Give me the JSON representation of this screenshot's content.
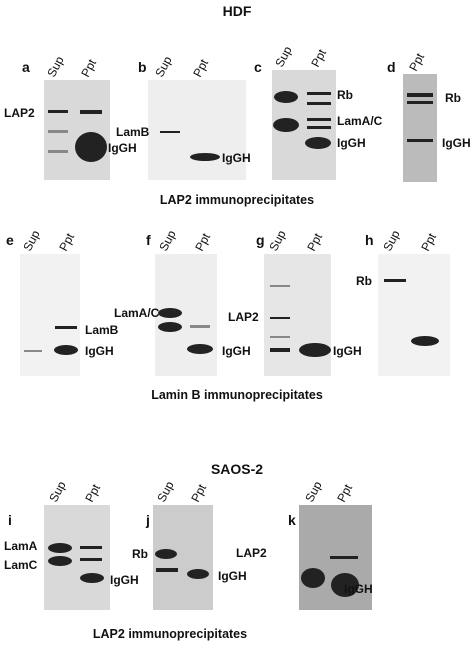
{
  "headers": [
    "HDF",
    "SAOS-2"
  ],
  "captions": [
    "LAP2 immunoprecipitates",
    "Lamin B immunoprecipitates",
    "LAP2 immunoprecipitates"
  ],
  "panels": [
    {
      "letter": "a",
      "lanes": [
        "Sup",
        "Ppt"
      ],
      "labels": [
        "LAP2",
        "IgGH"
      ]
    },
    {
      "letter": "b",
      "lanes": [
        "Sup",
        "Ppt"
      ],
      "labels": [
        "LamB",
        "IgGH"
      ]
    },
    {
      "letter": "c",
      "lanes": [
        "Sup",
        "Ppt"
      ],
      "labels": [
        "Rb",
        "LamA/C",
        "IgGH"
      ]
    },
    {
      "letter": "d",
      "lanes": [
        "Ppt"
      ],
      "labels": [
        "Rb",
        "IgGH"
      ]
    },
    {
      "letter": "e",
      "lanes": [
        "Sup",
        "Ppt"
      ],
      "labels": [
        "LamB",
        "IgGH"
      ]
    },
    {
      "letter": "f",
      "lanes": [
        "Sup",
        "Ppt"
      ],
      "labels": [
        "LamA/C",
        "IgGH"
      ]
    },
    {
      "letter": "g",
      "lanes": [
        "Sup",
        "Ppt"
      ],
      "labels": [
        "LAP2",
        "IgGH"
      ]
    },
    {
      "letter": "h",
      "lanes": [
        "Sup",
        "Ppt"
      ],
      "labels": [
        "Rb"
      ]
    },
    {
      "letter": "i",
      "lanes": [
        "Sup",
        "Ppt"
      ],
      "labels": [
        "LamA",
        "LamC",
        "IgGH"
      ]
    },
    {
      "letter": "j",
      "lanes": [
        "Sup",
        "Ppt"
      ],
      "labels": [
        "Rb",
        "IgGH"
      ]
    },
    {
      "letter": "k",
      "lanes": [
        "Sup",
        "Ppt"
      ],
      "labels": [
        "LAP2",
        "IgGH"
      ]
    }
  ]
}
